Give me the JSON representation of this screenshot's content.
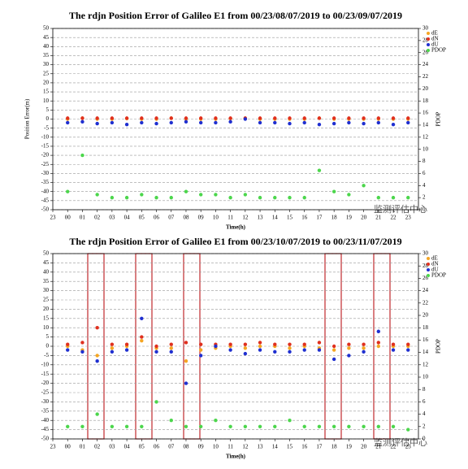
{
  "chart_data": [
    {
      "type": "scatter",
      "title": "The rdjn Position Error of Galileo E1 from 00/23/08/07/2019 to 00/23/09/07/2019",
      "xlabel": "Time(h)",
      "ylabel": "Position Error(m)",
      "y2label": "PDOP",
      "grid": true,
      "legend": "upper right",
      "x": [
        0,
        1,
        2,
        3,
        4,
        5,
        6,
        7,
        8,
        9,
        10,
        11,
        12,
        13,
        14,
        15,
        16,
        17,
        18,
        19,
        20,
        21,
        22,
        23
      ],
      "xlim": [
        -1,
        23.7
      ],
      "xticks": [
        {
          "value": -1,
          "label": "23"
        },
        {
          "value": 0,
          "label": "00"
        },
        {
          "value": 1,
          "label": "01"
        },
        {
          "value": 2,
          "label": "02"
        },
        {
          "value": 3,
          "label": "03"
        },
        {
          "value": 4,
          "label": "04"
        },
        {
          "value": 5,
          "label": "05"
        },
        {
          "value": 6,
          "label": "06"
        },
        {
          "value": 7,
          "label": "07"
        },
        {
          "value": 8,
          "label": "08"
        },
        {
          "value": 9,
          "label": "09"
        },
        10,
        11,
        12,
        13,
        14,
        15,
        16,
        17,
        18,
        19,
        20,
        21,
        22,
        23
      ],
      "ylim": [
        -50,
        50
      ],
      "yticks": [
        -50,
        -45,
        -40,
        -35,
        -30,
        -25,
        -20,
        -15,
        -10,
        -5,
        0,
        5,
        10,
        15,
        20,
        25,
        30,
        35,
        40,
        45,
        50
      ],
      "y2lim": [
        0,
        30
      ],
      "y2ticks": [
        0,
        2,
        4,
        6,
        8,
        10,
        12,
        14,
        16,
        18,
        20,
        22,
        24,
        26,
        28,
        30
      ],
      "series": [
        {
          "name": "dE",
          "color": "#f5a623",
          "values": [
            0,
            0.5,
            0,
            0,
            0.3,
            0,
            0,
            0.5,
            0,
            0,
            0,
            0.3,
            0.5,
            0,
            0,
            0,
            0,
            0.5,
            0,
            0,
            0,
            0,
            0,
            0
          ]
        },
        {
          "name": "dN",
          "color": "#e0301e",
          "values": [
            0.5,
            0.5,
            0.5,
            0.5,
            0.5,
            0.5,
            0.5,
            0.5,
            0.5,
            0.5,
            0.5,
            0.5,
            0.5,
            0.5,
            0.5,
            0.5,
            0.5,
            0.5,
            0.5,
            0.5,
            0.5,
            0.5,
            0.5,
            0.5
          ]
        },
        {
          "name": "dU",
          "color": "#1f2fd0",
          "values": [
            -2,
            -1.5,
            -2.5,
            -2,
            -3,
            -2,
            -2.5,
            -2,
            -1.5,
            -2,
            -2,
            -1.5,
            0,
            -2,
            -2,
            -2.5,
            -2,
            -3,
            -2.5,
            -2,
            -2.5,
            -2,
            -3,
            -2
          ]
        },
        {
          "name": "PDOP",
          "color": "#4cd64c",
          "axis": "y2",
          "values": [
            3,
            9,
            2.5,
            2,
            2,
            2.5,
            2,
            2,
            3,
            2.5,
            2.5,
            2,
            2.5,
            2,
            2,
            2,
            2,
            6.5,
            3,
            2.5,
            4,
            2,
            2,
            2
          ]
        }
      ]
    },
    {
      "type": "scatter",
      "title": "The rdjn Position Error of Galileo E1 from 00/23/10/07/2019 to 00/23/11/07/2019",
      "xlabel": "Time(h)",
      "y2label": "PDOP",
      "grid": true,
      "legend": "upper right",
      "x": [
        0,
        1,
        2,
        3,
        4,
        5,
        6,
        7,
        8,
        9,
        10,
        11,
        12,
        13,
        14,
        15,
        16,
        17,
        18,
        19,
        20,
        21,
        22,
        23
      ],
      "xlim": [
        -1,
        23.7
      ],
      "xticks": [
        {
          "value": -1,
          "label": "23"
        },
        {
          "value": 0,
          "label": "00"
        },
        {
          "value": 1,
          "label": "01"
        },
        {
          "value": 2,
          "label": "02"
        },
        {
          "value": 3,
          "label": "03"
        },
        {
          "value": 4,
          "label": "04"
        },
        {
          "value": 5,
          "label": "05"
        },
        {
          "value": 6,
          "label": "06"
        },
        {
          "value": 7,
          "label": "07"
        },
        {
          "value": 8,
          "label": "08"
        },
        {
          "value": 9,
          "label": "09"
        },
        10,
        11,
        12,
        13,
        14,
        15,
        16,
        17,
        18,
        19,
        20,
        21,
        22,
        23
      ],
      "ylim": [
        -50,
        50
      ],
      "yticks": [
        -50,
        -45,
        -40,
        -35,
        -30,
        -25,
        -20,
        -15,
        -10,
        -5,
        0,
        5,
        10,
        15,
        20,
        25,
        30,
        35,
        40,
        45,
        50
      ],
      "y2lim": [
        0,
        30
      ],
      "y2ticks": [
        0,
        2,
        4,
        6,
        8,
        10,
        12,
        14,
        16,
        18,
        20,
        22,
        24,
        26,
        28,
        30
      ],
      "series": [
        {
          "name": "dE",
          "color": "#f5a623",
          "values": [
            0,
            -2,
            -5,
            -1,
            0,
            3,
            -1,
            -1,
            -8,
            -2,
            -1,
            0,
            -1,
            0,
            0,
            -1,
            0,
            -1,
            -2,
            -1,
            -1,
            0,
            0,
            0
          ]
        },
        {
          "name": "dN",
          "color": "#e0301e",
          "values": [
            1,
            2,
            10,
            1,
            1,
            5,
            0,
            1,
            2,
            1,
            1,
            1,
            1,
            2,
            1,
            1,
            1,
            2,
            0,
            1,
            1,
            2,
            1,
            1
          ]
        },
        {
          "name": "dU",
          "color": "#1f2fd0",
          "values": [
            -2,
            -3,
            -8,
            -3,
            -2,
            15,
            -3,
            -3,
            -20,
            -5,
            0,
            -2,
            -4,
            -2,
            -3,
            -3,
            -2,
            -2,
            -7,
            -5,
            -3,
            8,
            -2,
            -2
          ]
        },
        {
          "name": "PDOP",
          "color": "#4cd64c",
          "axis": "y2",
          "values": [
            2,
            2,
            4,
            2,
            2,
            2,
            6,
            3,
            2,
            2,
            3,
            2,
            2,
            2,
            2,
            3,
            2,
            2,
            2,
            2,
            2,
            2,
            2,
            1.5
          ]
        }
      ]
    }
  ],
  "watermarks": [
    "监测评估中心",
    "监测评估中心"
  ]
}
